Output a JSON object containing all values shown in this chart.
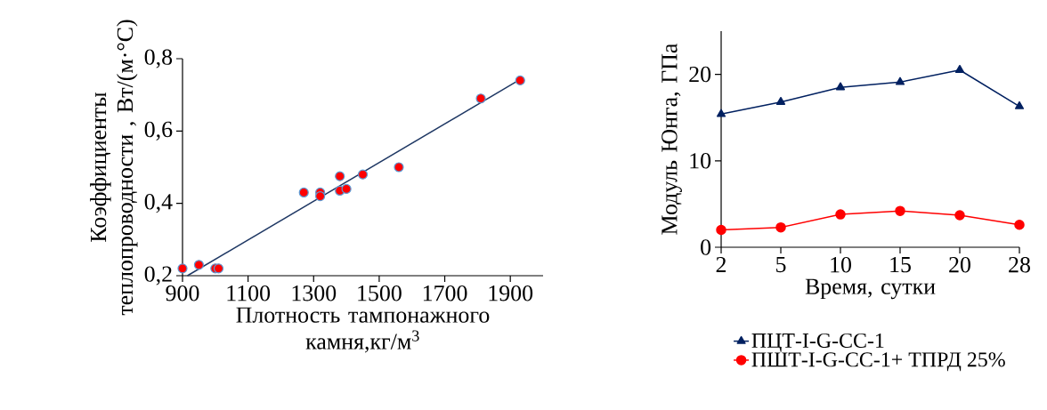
{
  "chart_data": [
    {
      "type": "scatter",
      "xlabel": "Плотность тампонажного камня,кг/м$^{3}$",
      "ylabel": "Коэффициенты теплопроводности , Вт/(м·°С)",
      "xlim": [
        900,
        2000
      ],
      "ylim": [
        0.2,
        0.8
      ],
      "xticks": [
        900,
        1100,
        1300,
        1500,
        1700,
        1900
      ],
      "yticks": [
        {
          "value": 0.2,
          "label": "0,2"
        },
        {
          "value": 0.4,
          "label": "0,4"
        },
        {
          "value": 0.6,
          "label": "0,6"
        },
        {
          "value": 0.8,
          "label": "0,8"
        }
      ],
      "series": [
        {
          "type": "scatter",
          "color": "#ff0000",
          "marker": "circle",
          "x": [
            900,
            950,
            1000,
            1010,
            1270,
            1320,
            1320,
            1380,
            1380,
            1400,
            1450,
            1560,
            1810,
            1930
          ],
          "values": [
            0.22,
            0.23,
            0.22,
            0.22,
            0.43,
            0.43,
            0.42,
            0.475,
            0.435,
            0.44,
            0.48,
            0.5,
            0.69,
            0.74
          ]
        },
        {
          "type": "line",
          "color": "#1f3864",
          "marker": "none",
          "x": [
            915,
            1925
          ],
          "values": [
            0.2,
            0.74
          ]
        }
      ]
    },
    {
      "type": "line",
      "xlabel": "Время, сутки",
      "ylabel": "Модуль Юнга, ГПа",
      "categories": [
        "2",
        "5",
        "10",
        "15",
        "20",
        "28"
      ],
      "ylim": [
        0,
        25
      ],
      "yticks": [
        0,
        10,
        20
      ],
      "legend": "bottom",
      "series": [
        {
          "name": "ПЦТ-I-G-CC-1",
          "color": "#002060",
          "marker": "triangle",
          "values": [
            15.4,
            16.8,
            18.5,
            19.1,
            20.5,
            16.3
          ]
        },
        {
          "name": "ПШТ-I-G-CC-1+ ТПРД 25%",
          "color": "#ff0000",
          "marker": "circle",
          "values": [
            2.0,
            2.3,
            3.8,
            4.2,
            3.7,
            2.6
          ]
        }
      ]
    }
  ]
}
